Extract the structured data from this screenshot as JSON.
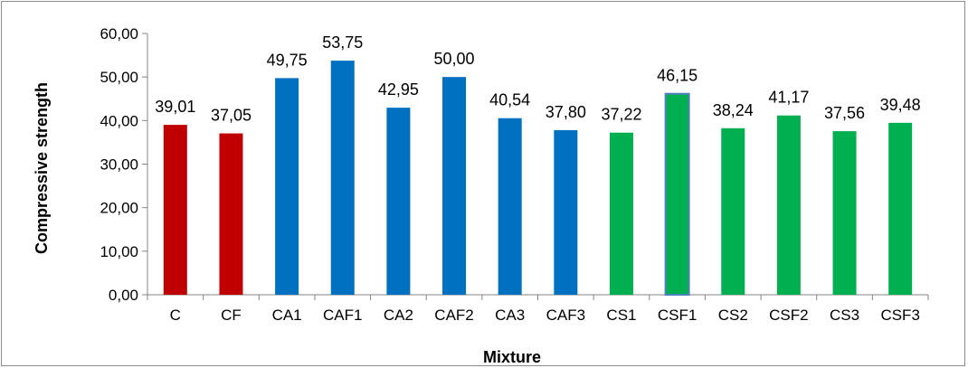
{
  "chart_data": {
    "type": "bar",
    "title": "",
    "xlabel": "Mixture",
    "ylabel": "Compressive strength",
    "ylim": [
      0,
      60
    ],
    "ytick_step": 10,
    "ytick_labels": [
      "0,00",
      "10,00",
      "20,00",
      "30,00",
      "40,00",
      "50,00",
      "60,00"
    ],
    "grid": false,
    "legend": "none",
    "categories": [
      "C",
      "CF",
      "CA1",
      "CAF1",
      "CA2",
      "CAF2",
      "CA3",
      "CAF3",
      "CS1",
      "CSF1",
      "CS2",
      "CSF2",
      "CS3",
      "CSF3"
    ],
    "values": [
      39.01,
      37.05,
      49.75,
      53.75,
      42.95,
      50.0,
      40.54,
      37.8,
      37.22,
      46.15,
      38.24,
      41.17,
      37.56,
      39.48
    ],
    "value_labels": [
      "39,01",
      "37,05",
      "49,75",
      "53,75",
      "42,95",
      "50,00",
      "40,54",
      "37,80",
      "37,22",
      "46,15",
      "38,24",
      "41,17",
      "37,56",
      "39,48"
    ],
    "colors": [
      "#c00000",
      "#c00000",
      "#0070c0",
      "#0070c0",
      "#0070c0",
      "#0070c0",
      "#0070c0",
      "#0070c0",
      "#00b050",
      "#00b050",
      "#00b050",
      "#00b050",
      "#00b050",
      "#00b050"
    ],
    "outline_colors": [
      "",
      "",
      "",
      "",
      "",
      "",
      "",
      "",
      "",
      "#4f81bd",
      "",
      "",
      "",
      ""
    ]
  }
}
